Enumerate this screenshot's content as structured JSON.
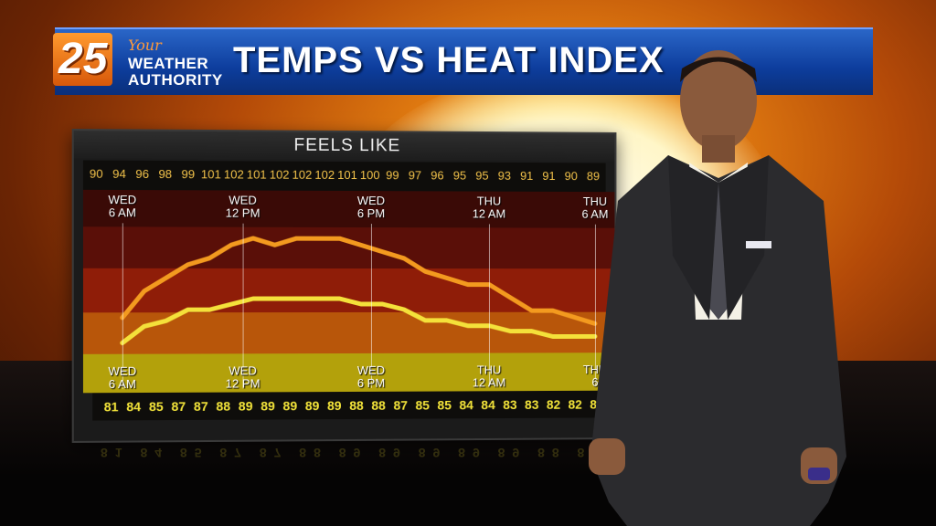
{
  "banner": {
    "title": "TEMPS VS HEAT INDEX",
    "logo": {
      "number": "25",
      "tagline": "Your",
      "line1": "WEATHER",
      "line2": "AUTHORITY"
    }
  },
  "chart": {
    "panel_title": "FEELS LIKE",
    "heat_index_values": [
      "90",
      "94",
      "96",
      "98",
      "99",
      "101",
      "102",
      "101",
      "102",
      "102",
      "102",
      "101",
      "100",
      "99",
      "97",
      "96",
      "95",
      "95",
      "93",
      "91",
      "91",
      "90",
      "89"
    ],
    "temperature_values": [
      "81",
      "84",
      "85",
      "87",
      "87",
      "88",
      "89",
      "89",
      "89",
      "89",
      "89",
      "88",
      "88",
      "87",
      "85",
      "85",
      "84",
      "84",
      "83",
      "83",
      "82",
      "82",
      "82"
    ],
    "top_time_labels": [
      {
        "day": "WED",
        "time": "6 AM"
      },
      {
        "day": "WED",
        "time": "12 PM"
      },
      {
        "day": "WED",
        "time": "6 PM"
      },
      {
        "day": "THU",
        "time": "12 AM"
      },
      {
        "day": "THU",
        "time": "6 AM"
      }
    ],
    "bottom_time_labels": [
      {
        "day": "WED",
        "time": "6 AM"
      },
      {
        "day": "WED",
        "time": "12 PM"
      },
      {
        "day": "WED",
        "time": "6 PM"
      },
      {
        "day": "THU",
        "time": "12 AM"
      },
      {
        "day": "THU",
        "time": "6"
      }
    ],
    "colors": {
      "heat_index_line": "#f39a1f",
      "temperature_line": "#f4e13a"
    }
  }
}
